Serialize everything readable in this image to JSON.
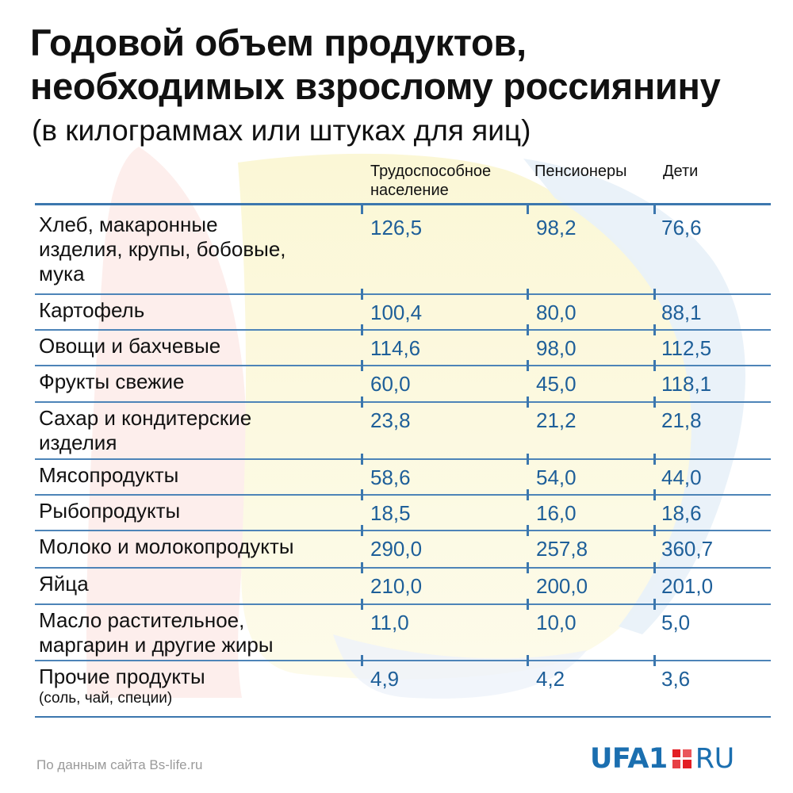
{
  "title_lines": [
    "Годовой объем продуктов,",
    "необходимых взрослому россиянину"
  ],
  "subtitle": "(в килограммах или штуках для яиц)",
  "colors": {
    "header_line": "#3c77ae",
    "row_line": "#4d84b8",
    "value_text": "#1e5f99",
    "logo_blue": "#1b6fb0",
    "logo_red": "#e31e24",
    "source_text": "#9a9a9a"
  },
  "chart_data": {
    "type": "table",
    "title": "Годовой объем продуктов, необходимых взрослому россиянину",
    "subtitle": "(в килограммах или штуках для яиц)",
    "columns": [
      {
        "key": "working",
        "label_lines": [
          "Трудоспособное",
          "население"
        ]
      },
      {
        "key": "pensioners",
        "label_lines": [
          "Пенсионеры"
        ]
      },
      {
        "key": "children",
        "label_lines": [
          "Дети"
        ]
      }
    ],
    "rows": [
      {
        "label_lines": [
          "Хлеб, макаронные",
          "изделия, крупы, бобовые,",
          "мука"
        ],
        "values": [
          "126,5",
          "98,2",
          "76,6"
        ]
      },
      {
        "label_lines": [
          "Картофель"
        ],
        "values": [
          "100,4",
          "80,0",
          "88,1"
        ]
      },
      {
        "label_lines": [
          "Овощи и бахчевые"
        ],
        "values": [
          "114,6",
          "98,0",
          "112,5"
        ]
      },
      {
        "label_lines": [
          "Фрукты свежие"
        ],
        "values": [
          "60,0",
          "45,0",
          "118,1"
        ]
      },
      {
        "label_lines": [
          "Сахар и кондитерские",
          "изделия"
        ],
        "values": [
          "23,8",
          "21,2",
          "21,8"
        ]
      },
      {
        "label_lines": [
          "Мясопродукты"
        ],
        "values": [
          "58,6",
          "54,0",
          "44,0"
        ]
      },
      {
        "label_lines": [
          "Рыбопродукты"
        ],
        "values": [
          "18,5",
          "16,0",
          "18,6"
        ]
      },
      {
        "label_lines": [
          "Молоко и молокопродукты"
        ],
        "values": [
          "290,0",
          "257,8",
          "360,7"
        ]
      },
      {
        "label_lines": [
          "Яйца"
        ],
        "values": [
          "210,0",
          "200,0",
          "201,0"
        ]
      },
      {
        "label_lines": [
          "Масло растительное,",
          "маргарин и другие жиры"
        ],
        "values": [
          "11,0",
          "10,0",
          "5,0"
        ]
      },
      {
        "label_lines": [
          "Прочие продукты"
        ],
        "note": "(соль, чай, специи)",
        "values": [
          "4,9",
          "4,2",
          "3,6"
        ]
      }
    ]
  },
  "source": "По данным сайта Bs-life.ru",
  "logo": {
    "main": "UFA1",
    "tail": "RU",
    "mark_icon": "red-square-mark-icon"
  }
}
